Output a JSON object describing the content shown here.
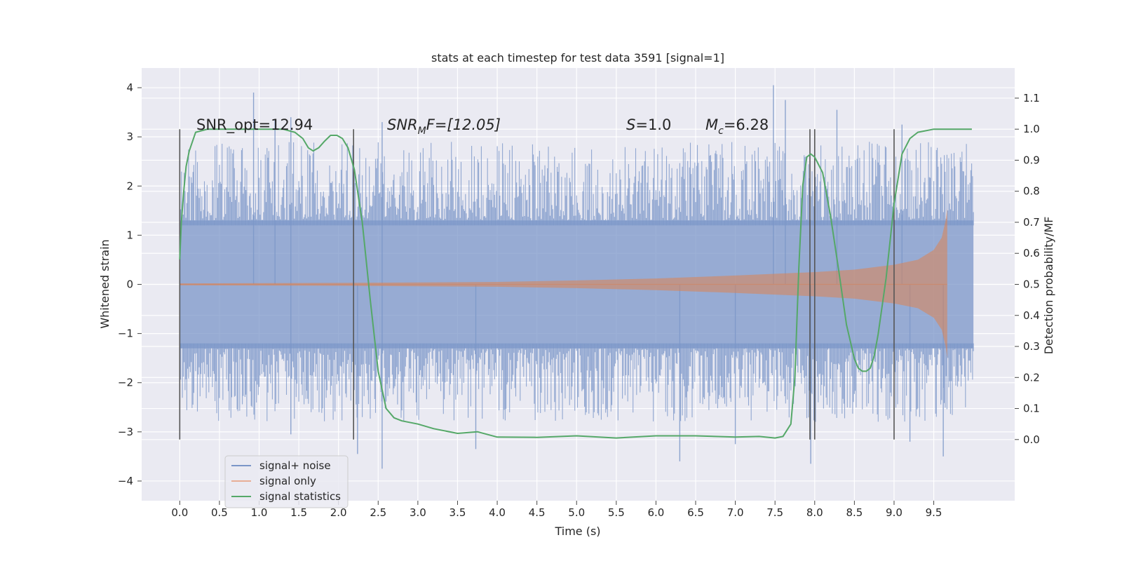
{
  "chart_data": {
    "type": "line",
    "title": "stats at each timestep for test data 3591 [signal=1]",
    "xlabel": "Time (s)",
    "ylabel_left": "Whitened strain",
    "ylabel_right": "Detection probability/MF",
    "xlim": [
      -0.48,
      10.52
    ],
    "ylim_left": [
      -4.4,
      4.4
    ],
    "ylim_right": [
      -0.197,
      1.197
    ],
    "x_ticks": [
      "0.0",
      "0.5",
      "1.0",
      "1.5",
      "2.0",
      "2.5",
      "3.0",
      "3.5",
      "4.0",
      "4.5",
      "5.0",
      "5.5",
      "6.0",
      "6.5",
      "7.0",
      "7.5",
      "8.0",
      "8.5",
      "9.0",
      "9.5"
    ],
    "y_ticks_left": [
      "4",
      "3",
      "2",
      "1",
      "0",
      "−1",
      "−2",
      "−3",
      "−4"
    ],
    "y_ticks_right": [
      "1.1",
      "1.0",
      "0.9",
      "0.8",
      "0.7",
      "0.6",
      "0.5",
      "0.4",
      "0.3",
      "0.2",
      "0.1",
      "0.0"
    ],
    "grid": true,
    "legend_position": "lower-left",
    "annotations": {
      "snr_opt": "SNR_opt=12.94",
      "snr_mf_base": "SNR",
      "snr_mf_sub": "M",
      "snr_mf_rest": "F=[12.05]",
      "s_var": "S",
      "s_val": "=1.0",
      "mc_var": "M",
      "mc_sub": "c",
      "mc_val": "=6.28"
    },
    "vertical_markers": [
      0.0,
      2.19,
      7.94,
      8.0,
      9.0
    ],
    "series": [
      {
        "name": "signal+ noise",
        "color": "#7b96c8",
        "axis": "left",
        "x_range": [
          0.0,
          10.0
        ],
        "core_band": [
          -1.3,
          1.3
        ],
        "peaks_positive": [
          [
            0.93,
            3.9
          ],
          [
            1.2,
            3.35
          ],
          [
            1.4,
            3.4
          ],
          [
            2.55,
            3.3
          ],
          [
            7.48,
            4.05
          ],
          [
            7.63,
            3.75
          ],
          [
            8.28,
            3.55
          ],
          [
            9.1,
            3.25
          ]
        ],
        "peaks_negative": [
          [
            1.4,
            -3.05
          ],
          [
            2.24,
            -3.45
          ],
          [
            2.55,
            -3.75
          ],
          [
            3.73,
            -3.35
          ],
          [
            6.3,
            -3.6
          ],
          [
            7.0,
            -3.25
          ],
          [
            7.95,
            -3.65
          ],
          [
            9.2,
            -3.2
          ],
          [
            9.62,
            -3.5
          ]
        ]
      },
      {
        "name": "signal only",
        "color": "#dd8452",
        "axis": "left",
        "envelope": {
          "x": [
            0.0,
            2.0,
            4.0,
            5.0,
            6.0,
            7.0,
            8.0,
            8.5,
            9.0,
            9.3,
            9.5,
            9.6,
            9.65,
            9.67
          ],
          "amp": [
            0.02,
            0.03,
            0.05,
            0.08,
            0.12,
            0.18,
            0.25,
            0.3,
            0.4,
            0.5,
            0.7,
            0.95,
            1.3,
            1.55
          ]
        },
        "x_end": 9.67
      },
      {
        "name": "signal statistics",
        "color": "#55a868",
        "axis": "right",
        "x": [
          0.0,
          0.02,
          0.05,
          0.08,
          0.12,
          0.2,
          0.35,
          0.5,
          0.7,
          1.0,
          1.3,
          1.45,
          1.55,
          1.62,
          1.68,
          1.75,
          1.82,
          1.9,
          1.98,
          2.05,
          2.12,
          2.2,
          2.3,
          2.4,
          2.5,
          2.6,
          2.7,
          2.8,
          3.0,
          3.2,
          3.5,
          3.75,
          4.0,
          4.5,
          5.0,
          5.5,
          6.0,
          6.5,
          7.0,
          7.3,
          7.5,
          7.6,
          7.7,
          7.75,
          7.8,
          7.85,
          7.9,
          7.95,
          8.0,
          8.1,
          8.2,
          8.3,
          8.4,
          8.5,
          8.55,
          8.6,
          8.65,
          8.7,
          8.75,
          8.8,
          8.9,
          9.0,
          9.1,
          9.2,
          9.3,
          9.5,
          9.7,
          9.98
        ],
        "y": [
          0.58,
          0.7,
          0.8,
          0.88,
          0.93,
          0.99,
          1.0,
          1.0,
          1.0,
          1.0,
          1.0,
          0.99,
          0.97,
          0.94,
          0.93,
          0.94,
          0.96,
          0.98,
          0.98,
          0.97,
          0.94,
          0.87,
          0.7,
          0.45,
          0.22,
          0.1,
          0.07,
          0.06,
          0.05,
          0.035,
          0.02,
          0.025,
          0.008,
          0.007,
          0.012,
          0.005,
          0.012,
          0.012,
          0.008,
          0.01,
          0.005,
          0.01,
          0.05,
          0.2,
          0.55,
          0.82,
          0.91,
          0.92,
          0.91,
          0.86,
          0.72,
          0.55,
          0.37,
          0.26,
          0.23,
          0.22,
          0.22,
          0.23,
          0.27,
          0.34,
          0.52,
          0.76,
          0.92,
          0.97,
          0.99,
          1.0,
          1.0,
          1.0
        ]
      }
    ]
  },
  "colors": {
    "plot_bg": "#eaeaf2",
    "grid": "#ffffff",
    "marker_line": "#555555",
    "text": "#262626"
  }
}
